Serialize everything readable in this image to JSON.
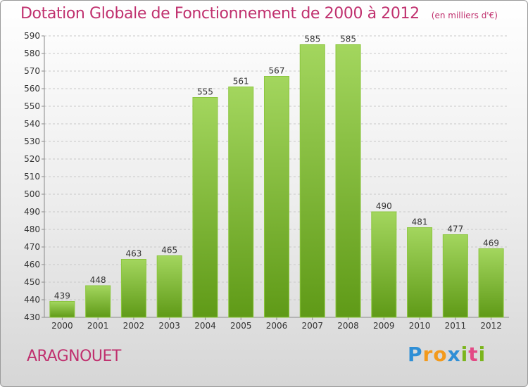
{
  "header": {
    "title": "Dotation Globale de Fonctionnement de 2000 à 2012",
    "unit": "(en milliers d'€)"
  },
  "footer": {
    "commune": "ARAGNOUET",
    "brand_letters": [
      "P",
      "r",
      "o",
      "x",
      "i",
      "t",
      "i"
    ]
  },
  "colors": {
    "title": "#c0306e",
    "bar_top": "#9fd25a",
    "bar_bottom": "#5f9a17"
  },
  "chart_data": {
    "type": "bar",
    "title": "Dotation Globale de Fonctionnement de 2000 à 2012",
    "xlabel": "",
    "ylabel": "",
    "categories": [
      "2000",
      "2001",
      "2002",
      "2003",
      "2004",
      "2005",
      "2006",
      "2007",
      "2008",
      "2009",
      "2010",
      "2011",
      "2012"
    ],
    "values": [
      439,
      448,
      463,
      465,
      555,
      561,
      567,
      585,
      585,
      490,
      481,
      477,
      469
    ],
    "ylim": [
      430,
      590
    ],
    "yticks": [
      430,
      440,
      450,
      460,
      470,
      480,
      490,
      500,
      510,
      520,
      530,
      540,
      550,
      560,
      570,
      580,
      590
    ],
    "grid": true,
    "data_labels": true
  }
}
